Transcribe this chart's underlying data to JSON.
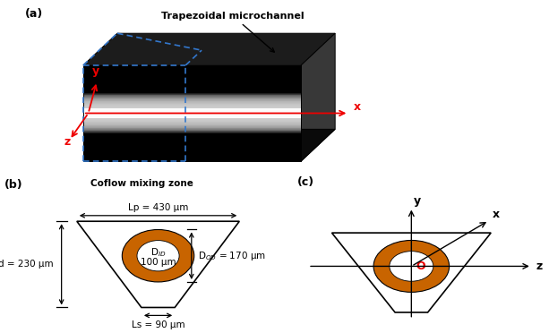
{
  "title_a": "(a)",
  "title_b": "(b)",
  "title_c": "(c)",
  "label_trapezoidal": "Trapezoidal microchannel",
  "label_coflow": "Coflow mixing zone",
  "label_Lp": "Lp = 430 μm",
  "label_Ls": "Ls = 90 μm",
  "label_d": "d = 230 μm",
  "label_DOD": "D$_{OD}$ = 170 μm",
  "label_DID_line1": "D$_{ID}$",
  "label_DID_line2": "100 μm",
  "label_O": "O",
  "orange_color": "#C86400",
  "background": "#FFFFFF",
  "red_color": "#EE0000",
  "blue_dash_color": "#3377CC",
  "black": "#000000"
}
